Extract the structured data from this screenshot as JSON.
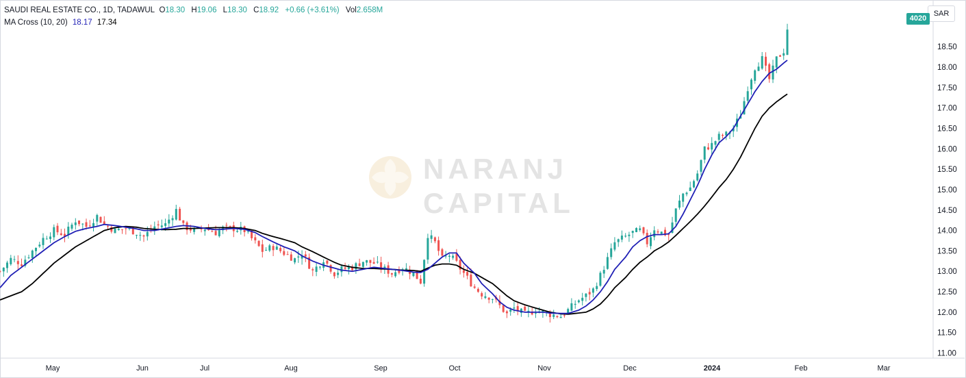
{
  "legend": {
    "title": "SAUDI REAL ESTATE CO., 1D, TADAWUL",
    "o_label": "O",
    "o_val": "18.30",
    "h_label": "H",
    "h_val": "19.06",
    "l_label": "L",
    "l_val": "18.30",
    "c_label": "C",
    "c_val": "18.92",
    "change": "+0.66 (+3.61%)",
    "vol_label": "Vol",
    "vol_val": "2.658M",
    "ma_name": "MA Cross (10, 20)",
    "ma_fast": "18.17",
    "ma_slow": "17.34"
  },
  "currency": "SAR",
  "last_tag": "4020",
  "watermark": {
    "line1": "NARANJ",
    "line2": "CAPITAL"
  },
  "colors": {
    "up": "#26a69a",
    "down": "#ef5350",
    "ma_fast": "#1f1fb5",
    "ma_slow": "#000000"
  },
  "chart_data": {
    "type": "candlestick",
    "x_axis_labels": [
      "May",
      "Jun",
      "Jul",
      "Aug",
      "Sep",
      "Oct",
      "Nov",
      "Dec",
      "2024",
      "Feb",
      "Mar"
    ],
    "y_ticks": [
      "18.50",
      "18.00",
      "17.50",
      "17.00",
      "16.50",
      "16.00",
      "15.50",
      "15.00",
      "14.50",
      "14.00",
      "13.50",
      "13.00",
      "12.50",
      "12.00",
      "11.50",
      "11.00"
    ],
    "ylim": [
      10.95,
      19.25
    ],
    "close_path": [
      [
        0,
        13.0
      ],
      [
        3,
        13.3
      ],
      [
        6,
        13.2
      ],
      [
        9,
        13.5
      ],
      [
        12,
        13.8
      ],
      [
        15,
        14.0
      ],
      [
        18,
        13.9
      ],
      [
        21,
        14.25
      ],
      [
        24,
        14.1
      ],
      [
        27,
        14.35
      ],
      [
        29,
        14.15
      ],
      [
        32,
        14.0
      ],
      [
        35,
        14.05
      ],
      [
        38,
        13.95
      ],
      [
        40,
        13.85
      ],
      [
        43,
        14.1
      ],
      [
        46,
        14.15
      ],
      [
        49,
        14.5
      ],
      [
        51,
        14.1
      ],
      [
        54,
        14.0
      ],
      [
        57,
        14.05
      ],
      [
        60,
        13.95
      ],
      [
        62,
        14.05
      ],
      [
        65,
        14.05
      ],
      [
        68,
        14.0
      ],
      [
        71,
        13.7
      ],
      [
        73,
        13.5
      ],
      [
        76,
        13.6
      ],
      [
        79,
        13.45
      ],
      [
        82,
        13.3
      ],
      [
        84,
        13.45
      ],
      [
        87,
        13.0
      ],
      [
        90,
        13.3
      ],
      [
        93,
        12.95
      ],
      [
        95,
        13.05
      ],
      [
        98,
        13.1
      ],
      [
        101,
        13.25
      ],
      [
        104,
        13.2
      ],
      [
        106,
        13.1
      ],
      [
        109,
        12.95
      ],
      [
        112,
        13.1
      ],
      [
        115,
        12.95
      ],
      [
        117,
        12.75
      ],
      [
        119,
        13.9
      ],
      [
        121,
        13.7
      ],
      [
        123,
        13.3
      ],
      [
        125,
        13.4
      ],
      [
        127,
        13.2
      ],
      [
        129,
        12.95
      ],
      [
        132,
        12.6
      ],
      [
        134,
        12.45
      ],
      [
        137,
        12.35
      ],
      [
        139,
        12.15
      ],
      [
        141,
        11.95
      ],
      [
        143,
        12.1
      ],
      [
        146,
        11.95
      ],
      [
        149,
        12.05
      ],
      [
        151,
        12.0
      ],
      [
        153,
        11.95
      ],
      [
        156,
        11.9
      ],
      [
        158,
        12.05
      ],
      [
        161,
        12.3
      ],
      [
        163,
        12.4
      ],
      [
        165,
        12.55
      ],
      [
        167,
        12.9
      ],
      [
        169,
        13.3
      ],
      [
        171,
        13.7
      ],
      [
        174,
        13.85
      ],
      [
        176,
        13.95
      ],
      [
        178,
        14.0
      ],
      [
        180,
        13.7
      ],
      [
        182,
        14.05
      ],
      [
        184,
        13.95
      ],
      [
        186,
        13.9
      ],
      [
        188,
        14.5
      ],
      [
        190,
        14.9
      ],
      [
        192,
        15.05
      ],
      [
        194,
        15.4
      ],
      [
        196,
        16.0
      ],
      [
        198,
        16.1
      ],
      [
        200,
        16.3
      ],
      [
        202,
        16.35
      ],
      [
        204,
        16.5
      ],
      [
        206,
        16.85
      ],
      [
        208,
        17.5
      ],
      [
        210,
        18.0
      ],
      [
        212,
        18.2
      ],
      [
        214,
        17.7
      ],
      [
        216,
        18.2
      ],
      [
        218,
        18.4
      ],
      [
        219,
        18.92
      ]
    ],
    "ma_fast_path": [
      [
        0,
        12.6
      ],
      [
        3,
        12.9
      ],
      [
        6,
        13.1
      ],
      [
        9,
        13.3
      ],
      [
        12,
        13.5
      ],
      [
        15,
        13.7
      ],
      [
        18,
        13.85
      ],
      [
        21,
        13.98
      ],
      [
        24,
        14.05
      ],
      [
        27,
        14.1
      ],
      [
        29,
        14.15
      ],
      [
        32,
        14.12
      ],
      [
        35,
        14.08
      ],
      [
        38,
        14.04
      ],
      [
        40,
        14.0
      ],
      [
        43,
        14.0
      ],
      [
        46,
        14.05
      ],
      [
        49,
        14.1
      ],
      [
        51,
        14.12
      ],
      [
        54,
        14.1
      ],
      [
        57,
        14.05
      ],
      [
        60,
        14.02
      ],
      [
        62,
        14.03
      ],
      [
        65,
        14.05
      ],
      [
        68,
        14.03
      ],
      [
        71,
        13.95
      ],
      [
        73,
        13.85
      ],
      [
        76,
        13.72
      ],
      [
        79,
        13.6
      ],
      [
        82,
        13.5
      ],
      [
        84,
        13.38
      ],
      [
        87,
        13.25
      ],
      [
        90,
        13.15
      ],
      [
        93,
        13.08
      ],
      [
        95,
        13.03
      ],
      [
        98,
        13.0
      ],
      [
        101,
        13.05
      ],
      [
        104,
        13.1
      ],
      [
        106,
        13.08
      ],
      [
        109,
        13.05
      ],
      [
        112,
        13.02
      ],
      [
        115,
        12.98
      ],
      [
        117,
        12.97
      ],
      [
        119,
        13.05
      ],
      [
        121,
        13.2
      ],
      [
        123,
        13.35
      ],
      [
        125,
        13.45
      ],
      [
        127,
        13.45
      ],
      [
        129,
        13.2
      ],
      [
        132,
        12.95
      ],
      [
        134,
        12.7
      ],
      [
        137,
        12.45
      ],
      [
        139,
        12.25
      ],
      [
        141,
        12.12
      ],
      [
        143,
        12.05
      ],
      [
        146,
        12.0
      ],
      [
        149,
        12.0
      ],
      [
        151,
        12.0
      ],
      [
        153,
        11.98
      ],
      [
        156,
        11.97
      ],
      [
        158,
        11.97
      ],
      [
        161,
        12.05
      ],
      [
        163,
        12.15
      ],
      [
        165,
        12.3
      ],
      [
        167,
        12.5
      ],
      [
        169,
        12.75
      ],
      [
        171,
        13.05
      ],
      [
        174,
        13.35
      ],
      [
        176,
        13.6
      ],
      [
        178,
        13.75
      ],
      [
        180,
        13.85
      ],
      [
        182,
        13.9
      ],
      [
        184,
        13.9
      ],
      [
        186,
        13.92
      ],
      [
        188,
        14.1
      ],
      [
        190,
        14.4
      ],
      [
        192,
        14.75
      ],
      [
        194,
        15.1
      ],
      [
        196,
        15.5
      ],
      [
        198,
        15.85
      ],
      [
        200,
        16.15
      ],
      [
        202,
        16.3
      ],
      [
        204,
        16.5
      ],
      [
        206,
        16.8
      ],
      [
        208,
        17.1
      ],
      [
        210,
        17.4
      ],
      [
        212,
        17.65
      ],
      [
        214,
        17.85
      ],
      [
        216,
        17.95
      ],
      [
        218,
        18.1
      ],
      [
        219,
        18.17
      ]
    ],
    "ma_slow_path": [
      [
        0,
        12.3
      ],
      [
        3,
        12.4
      ],
      [
        6,
        12.5
      ],
      [
        9,
        12.7
      ],
      [
        12,
        12.95
      ],
      [
        15,
        13.2
      ],
      [
        18,
        13.4
      ],
      [
        21,
        13.6
      ],
      [
        24,
        13.75
      ],
      [
        27,
        13.9
      ],
      [
        29,
        14.0
      ],
      [
        32,
        14.07
      ],
      [
        35,
        14.1
      ],
      [
        38,
        14.08
      ],
      [
        40,
        14.05
      ],
      [
        43,
        14.03
      ],
      [
        46,
        14.02
      ],
      [
        49,
        14.03
      ],
      [
        51,
        14.05
      ],
      [
        54,
        14.05
      ],
      [
        57,
        14.06
      ],
      [
        60,
        14.07
      ],
      [
        62,
        14.07
      ],
      [
        65,
        14.07
      ],
      [
        68,
        14.05
      ],
      [
        71,
        14.0
      ],
      [
        73,
        13.93
      ],
      [
        76,
        13.85
      ],
      [
        79,
        13.78
      ],
      [
        82,
        13.7
      ],
      [
        84,
        13.6
      ],
      [
        87,
        13.48
      ],
      [
        90,
        13.35
      ],
      [
        93,
        13.22
      ],
      [
        95,
        13.15
      ],
      [
        98,
        13.1
      ],
      [
        101,
        13.07
      ],
      [
        104,
        13.07
      ],
      [
        106,
        13.06
      ],
      [
        109,
        13.05
      ],
      [
        112,
        13.03
      ],
      [
        115,
        13.02
      ],
      [
        117,
        13.0
      ],
      [
        119,
        13.08
      ],
      [
        121,
        13.15
      ],
      [
        123,
        13.18
      ],
      [
        125,
        13.18
      ],
      [
        127,
        13.15
      ],
      [
        129,
        13.05
      ],
      [
        132,
        12.95
      ],
      [
        134,
        12.85
      ],
      [
        137,
        12.7
      ],
      [
        139,
        12.55
      ],
      [
        141,
        12.4
      ],
      [
        143,
        12.28
      ],
      [
        146,
        12.18
      ],
      [
        149,
        12.1
      ],
      [
        151,
        12.05
      ],
      [
        153,
        12.0
      ],
      [
        156,
        11.96
      ],
      [
        158,
        11.95
      ],
      [
        161,
        11.98
      ],
      [
        163,
        12.0
      ],
      [
        165,
        12.08
      ],
      [
        167,
        12.2
      ],
      [
        169,
        12.38
      ],
      [
        171,
        12.6
      ],
      [
        174,
        12.85
      ],
      [
        176,
        13.05
      ],
      [
        178,
        13.22
      ],
      [
        180,
        13.35
      ],
      [
        182,
        13.5
      ],
      [
        184,
        13.6
      ],
      [
        186,
        13.72
      ],
      [
        188,
        13.88
      ],
      [
        190,
        14.05
      ],
      [
        192,
        14.22
      ],
      [
        194,
        14.4
      ],
      [
        196,
        14.6
      ],
      [
        198,
        14.82
      ],
      [
        200,
        15.05
      ],
      [
        202,
        15.25
      ],
      [
        204,
        15.5
      ],
      [
        206,
        15.8
      ],
      [
        208,
        16.15
      ],
      [
        210,
        16.5
      ],
      [
        212,
        16.8
      ],
      [
        214,
        17.0
      ],
      [
        216,
        17.15
      ],
      [
        218,
        17.28
      ],
      [
        219,
        17.34
      ]
    ]
  }
}
